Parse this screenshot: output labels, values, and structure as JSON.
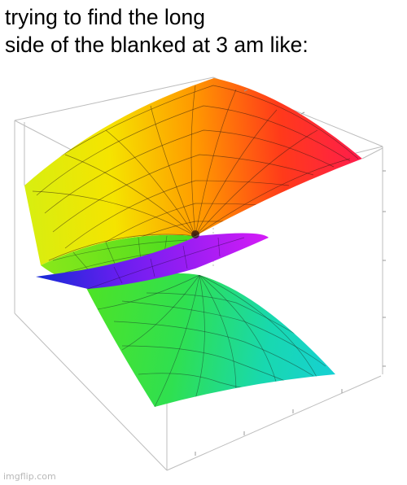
{
  "caption": {
    "line1": "trying to find the long",
    "line2": "side of the blanked at 3 am like:"
  },
  "image": {
    "subject": "3d-complex-surface-plot",
    "colors": {
      "red": "#ff1a3a",
      "orange": "#ff8c00",
      "yellow": "#f5e400",
      "green": "#33e020",
      "cyan": "#16d6c6",
      "blue": "#1a2ad8",
      "magenta": "#c21cff"
    }
  },
  "watermark": "imgflip.com"
}
